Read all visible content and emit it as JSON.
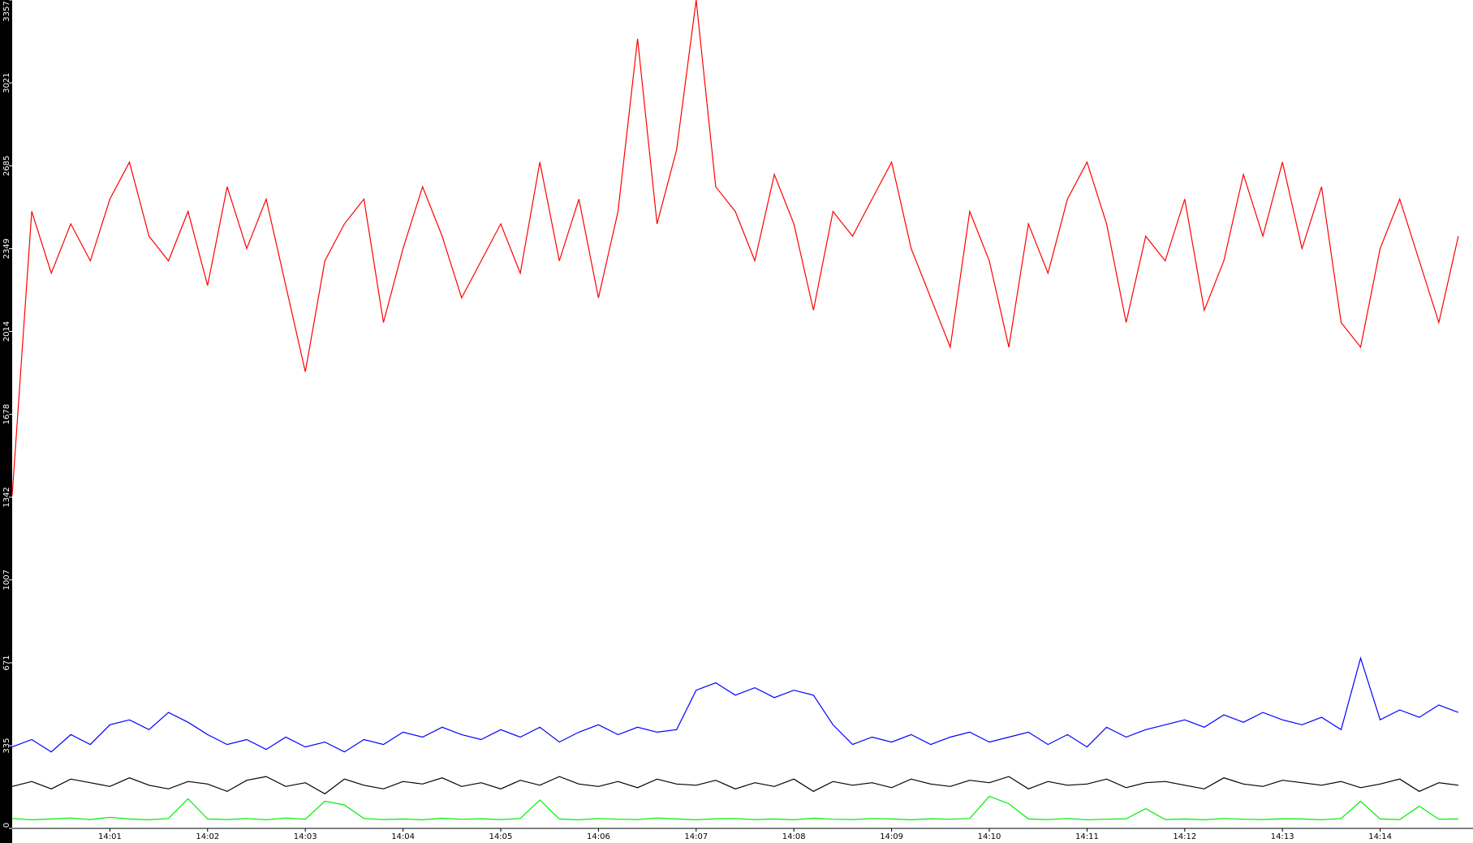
{
  "chart_data": {
    "type": "line",
    "x": [
      0,
      0.2,
      0.4,
      0.6,
      0.8,
      1,
      1.2,
      1.4,
      1.6,
      1.8,
      2,
      2.2,
      2.4,
      2.6,
      2.8,
      3,
      3.2,
      3.4,
      3.6,
      3.8,
      4,
      4.2,
      4.4,
      4.6,
      4.8,
      5,
      5.2,
      5.4,
      5.6,
      5.8,
      6,
      6.2,
      6.4,
      6.6,
      6.8,
      7,
      7.2,
      7.4,
      7.6,
      7.8,
      8,
      8.2,
      8.4,
      8.6,
      8.8,
      9,
      9.2,
      9.4,
      9.6,
      9.8,
      10,
      10.2,
      10.4,
      10.6,
      10.8,
      11,
      11.2,
      11.4,
      11.6,
      11.8,
      12,
      12.2,
      12.4,
      12.6,
      12.8,
      13,
      13.2,
      13.4,
      13.6,
      13.8,
      14,
      14.2,
      14.4,
      14.6,
      14.8
    ],
    "xlim": [
      0,
      14.95
    ],
    "xticks": [
      {
        "value": 1,
        "label": "14:01"
      },
      {
        "value": 2,
        "label": "14:02"
      },
      {
        "value": 3,
        "label": "14:03"
      },
      {
        "value": 4,
        "label": "14:04"
      },
      {
        "value": 5,
        "label": "14:05"
      },
      {
        "value": 6,
        "label": "14:06"
      },
      {
        "value": 7,
        "label": "14:07"
      },
      {
        "value": 8,
        "label": "14:08"
      },
      {
        "value": 9,
        "label": "14:09"
      },
      {
        "value": 10,
        "label": "14:10"
      },
      {
        "value": 11,
        "label": "14:11"
      },
      {
        "value": 12,
        "label": "14:12"
      },
      {
        "value": 13,
        "label": "14:13"
      },
      {
        "value": 14,
        "label": "14:14"
      }
    ],
    "ylim": [
      0,
      3357
    ],
    "yticks": [
      0,
      335,
      671,
      1007,
      1342,
      1678,
      2014,
      2349,
      2685,
      3021,
      3357
    ],
    "series": [
      {
        "color": "#ff0000",
        "values": [
          1350,
          2500,
          2250,
          2450,
          2300,
          2550,
          2700,
          2400,
          2300,
          2500,
          2200,
          2600,
          2350,
          2550,
          2200,
          1850,
          2300,
          2450,
          2550,
          2050,
          2350,
          2600,
          2400,
          2150,
          2300,
          2450,
          2250,
          2700,
          2300,
          2550,
          2150,
          2500,
          3200,
          2450,
          2750,
          3357,
          2600,
          2500,
          2300,
          2650,
          2450,
          2100,
          2500,
          2400,
          2550,
          2700,
          2350,
          2150,
          1950,
          2500,
          2300,
          1950,
          2450,
          2250,
          2550,
          2700,
          2450,
          2050,
          2400,
          2300,
          2550,
          2100,
          2300,
          2650,
          2400,
          2700,
          2350,
          2600,
          2050,
          1950,
          2350,
          2550,
          2300,
          2050,
          2400
        ]
      },
      {
        "color": "#0000ff",
        "values": [
          330,
          360,
          310,
          380,
          340,
          420,
          440,
          400,
          470,
          430,
          380,
          340,
          360,
          320,
          370,
          330,
          350,
          310,
          360,
          340,
          390,
          370,
          410,
          380,
          360,
          400,
          370,
          410,
          350,
          390,
          420,
          380,
          410,
          390,
          400,
          560,
          590,
          540,
          570,
          530,
          560,
          540,
          420,
          340,
          370,
          350,
          380,
          340,
          370,
          390,
          350,
          370,
          390,
          340,
          380,
          330,
          410,
          370,
          400,
          420,
          440,
          410,
          460,
          430,
          470,
          440,
          420,
          450,
          400,
          690,
          440,
          480,
          450,
          500,
          470
        ]
      },
      {
        "color": "#000000",
        "values": [
          170,
          190,
          160,
          200,
          185,
          170,
          205,
          175,
          160,
          190,
          180,
          150,
          195,
          210,
          170,
          185,
          140,
          200,
          175,
          160,
          190,
          180,
          205,
          170,
          185,
          160,
          195,
          175,
          210,
          180,
          170,
          190,
          165,
          200,
          180,
          175,
          195,
          160,
          185,
          170,
          200,
          150,
          190,
          175,
          185,
          165,
          200,
          180,
          170,
          195,
          185,
          210,
          160,
          190,
          175,
          180,
          200,
          165,
          185,
          190,
          175,
          160,
          205,
          180,
          170,
          195,
          185,
          175,
          190,
          165,
          180,
          200,
          150,
          185,
          175
        ]
      },
      {
        "color": "#00ee00",
        "values": [
          40,
          35,
          38,
          42,
          36,
          45,
          38,
          35,
          40,
          120,
          38,
          36,
          40,
          35,
          42,
          37,
          110,
          95,
          40,
          36,
          38,
          35,
          41,
          37,
          39,
          36,
          40,
          115,
          38,
          35,
          40,
          37,
          36,
          42,
          38,
          35,
          39,
          40,
          36,
          38,
          35,
          41,
          37,
          36,
          40,
          38,
          35,
          39,
          37,
          40,
          130,
          100,
          38,
          36,
          40,
          35,
          37,
          39,
          80,
          36,
          38,
          35,
          40,
          37,
          36,
          39,
          38,
          35,
          40,
          110,
          38,
          36,
          90,
          37,
          38
        ]
      }
    ]
  }
}
